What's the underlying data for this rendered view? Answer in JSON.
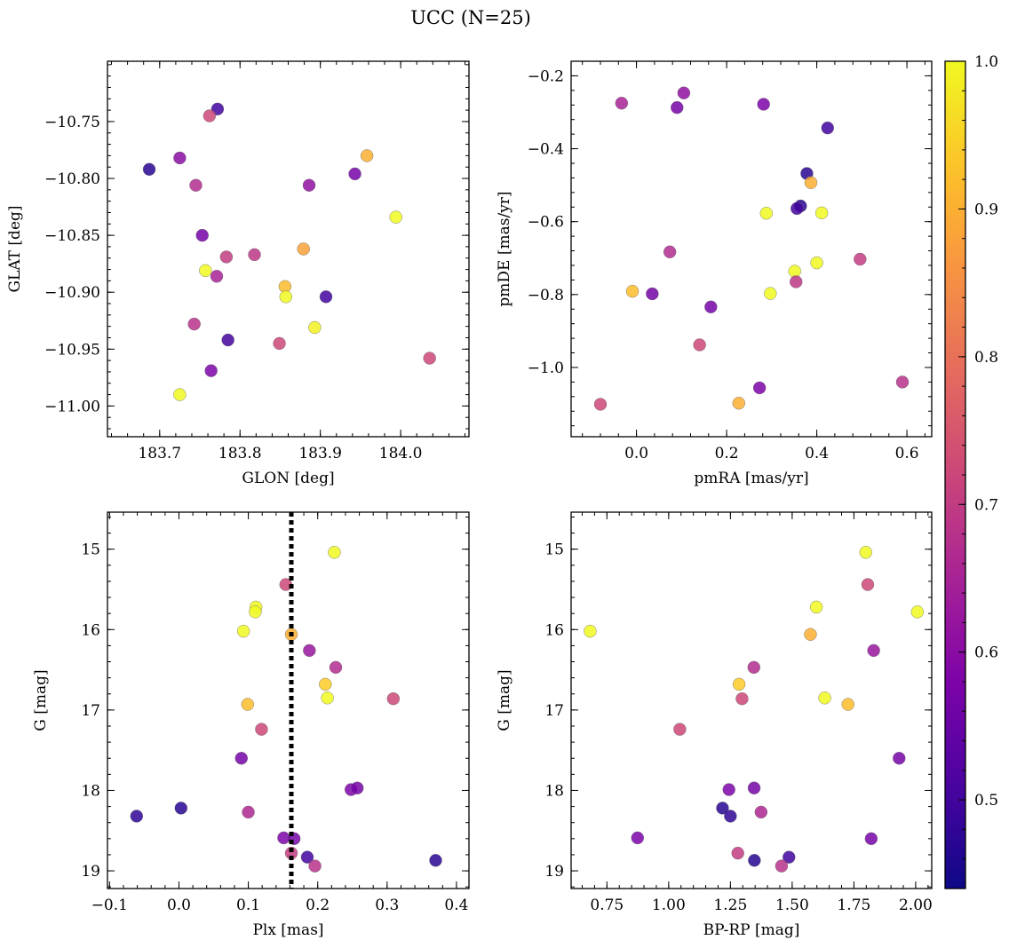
{
  "figure": {
    "title": "UCC (N=25)"
  },
  "colors": {
    "colormap": "plasma",
    "marker_edge": "#666666",
    "vline": "#000000"
  },
  "chart_data": [
    {
      "type": "scatter",
      "id": "sky",
      "xlabel": "GLON [deg]",
      "ylabel": "GLAT [deg]",
      "xlim": [
        183.635,
        184.085
      ],
      "ylim": [
        -11.027,
        -10.697
      ],
      "xticks": [
        183.7,
        183.8,
        183.9,
        184.0
      ],
      "xtick_labels": [
        "183.7",
        "183.8",
        "183.9",
        "184.0"
      ],
      "yticks": [
        -10.75,
        -10.8,
        -10.85,
        -10.9,
        -10.95,
        -11.0
      ],
      "ytick_labels": [
        "−10.75",
        "−10.80",
        "−10.85",
        "−10.90",
        "−10.95",
        "−11.00"
      ],
      "points": [
        {
          "x": 183.687,
          "y": -10.792,
          "c": 0.47
        },
        {
          "x": 183.772,
          "y": -10.739,
          "c": 0.5
        },
        {
          "x": 183.762,
          "y": -10.745,
          "c": 0.72
        },
        {
          "x": 183.725,
          "y": -10.782,
          "c": 0.6
        },
        {
          "x": 183.745,
          "y": -10.806,
          "c": 0.67
        },
        {
          "x": 183.753,
          "y": -10.85,
          "c": 0.57
        },
        {
          "x": 183.757,
          "y": -10.881,
          "c": 1.0
        },
        {
          "x": 183.771,
          "y": -10.886,
          "c": 0.65
        },
        {
          "x": 183.783,
          "y": -10.869,
          "c": 0.7
        },
        {
          "x": 183.818,
          "y": -10.867,
          "c": 0.69
        },
        {
          "x": 183.743,
          "y": -10.928,
          "c": 0.68
        },
        {
          "x": 183.785,
          "y": -10.942,
          "c": 0.5
        },
        {
          "x": 183.764,
          "y": -10.969,
          "c": 0.58
        },
        {
          "x": 183.725,
          "y": -10.99,
          "c": 1.0
        },
        {
          "x": 183.849,
          "y": -10.945,
          "c": 0.72
        },
        {
          "x": 183.856,
          "y": -10.895,
          "c": 0.92
        },
        {
          "x": 183.857,
          "y": -10.904,
          "c": 1.0
        },
        {
          "x": 183.879,
          "y": -10.862,
          "c": 0.88
        },
        {
          "x": 183.886,
          "y": -10.806,
          "c": 0.61
        },
        {
          "x": 183.893,
          "y": -10.931,
          "c": 0.99
        },
        {
          "x": 183.907,
          "y": -10.904,
          "c": 0.5
        },
        {
          "x": 183.943,
          "y": -10.796,
          "c": 0.57
        },
        {
          "x": 183.958,
          "y": -10.78,
          "c": 0.9
        },
        {
          "x": 183.994,
          "y": -10.834,
          "c": 1.0
        },
        {
          "x": 184.036,
          "y": -10.958,
          "c": 0.72
        }
      ]
    },
    {
      "type": "scatter",
      "id": "pm",
      "xlabel": "pmRA [mas/yr]",
      "ylabel": "pmDE [mas/yr]",
      "xlim": [
        -0.145,
        0.655
      ],
      "ylim": [
        -1.19,
        -0.16
      ],
      "xticks": [
        0.0,
        0.2,
        0.4,
        0.6
      ],
      "xtick_labels": [
        "0.0",
        "0.2",
        "0.4",
        "0.6"
      ],
      "yticks": [
        -0.2,
        -0.4,
        -0.6,
        -0.8,
        -1.0
      ],
      "ytick_labels": [
        "−0.2",
        "−0.4",
        "−0.6",
        "−0.8",
        "−1.0"
      ],
      "points": [
        {
          "x": -0.033,
          "y": -0.275,
          "c": 0.65
        },
        {
          "x": 0.105,
          "y": -0.247,
          "c": 0.61
        },
        {
          "x": 0.09,
          "y": -0.287,
          "c": 0.57
        },
        {
          "x": 0.282,
          "y": -0.278,
          "c": 0.58
        },
        {
          "x": 0.424,
          "y": -0.343,
          "c": 0.5
        },
        {
          "x": 0.378,
          "y": -0.468,
          "c": 0.47
        },
        {
          "x": 0.387,
          "y": -0.493,
          "c": 0.9
        },
        {
          "x": 0.364,
          "y": -0.557,
          "c": 0.47
        },
        {
          "x": 0.356,
          "y": -0.564,
          "c": 0.5
        },
        {
          "x": 0.288,
          "y": -0.577,
          "c": 1.0
        },
        {
          "x": 0.411,
          "y": -0.576,
          "c": 1.0
        },
        {
          "x": 0.074,
          "y": -0.683,
          "c": 0.67
        },
        {
          "x": 0.4,
          "y": -0.713,
          "c": 1.0
        },
        {
          "x": 0.496,
          "y": -0.703,
          "c": 0.7
        },
        {
          "x": 0.351,
          "y": -0.736,
          "c": 1.0
        },
        {
          "x": 0.354,
          "y": -0.765,
          "c": 0.69
        },
        {
          "x": -0.009,
          "y": -0.791,
          "c": 0.92
        },
        {
          "x": 0.035,
          "y": -0.798,
          "c": 0.57
        },
        {
          "x": 0.297,
          "y": -0.797,
          "c": 1.0
        },
        {
          "x": 0.165,
          "y": -0.834,
          "c": 0.57
        },
        {
          "x": 0.14,
          "y": -0.938,
          "c": 0.72
        },
        {
          "x": 0.273,
          "y": -1.056,
          "c": 0.58
        },
        {
          "x": 0.59,
          "y": -1.04,
          "c": 0.68
        },
        {
          "x": -0.08,
          "y": -1.101,
          "c": 0.72
        },
        {
          "x": 0.227,
          "y": -1.098,
          "c": 0.9
        }
      ]
    },
    {
      "type": "scatter",
      "id": "plx",
      "xlabel": "Plx [mas]",
      "ylabel": "G [mag]",
      "xlim": [
        -0.103,
        0.418
      ],
      "ylim": [
        19.22,
        14.54
      ],
      "xticks": [
        -0.1,
        0.0,
        0.1,
        0.2,
        0.3,
        0.4
      ],
      "xtick_labels": [
        "−0.1",
        "0.0",
        "0.1",
        "0.2",
        "0.3",
        "0.4"
      ],
      "yticks": [
        15,
        16,
        17,
        18,
        19
      ],
      "ytick_labels": [
        "15",
        "16",
        "17",
        "18",
        "19"
      ],
      "vline": 0.162,
      "points": [
        {
          "x": 0.224,
          "y": 15.04,
          "c": 1.0
        },
        {
          "x": 0.154,
          "y": 15.44,
          "c": 0.72
        },
        {
          "x": 0.111,
          "y": 15.72,
          "c": 1.0
        },
        {
          "x": 0.11,
          "y": 15.78,
          "c": 1.0
        },
        {
          "x": 0.093,
          "y": 16.02,
          "c": 1.0
        },
        {
          "x": 0.162,
          "y": 16.06,
          "c": 0.9
        },
        {
          "x": 0.188,
          "y": 16.26,
          "c": 0.62
        },
        {
          "x": 0.226,
          "y": 16.47,
          "c": 0.67
        },
        {
          "x": 0.211,
          "y": 16.68,
          "c": 0.94
        },
        {
          "x": 0.214,
          "y": 16.85,
          "c": 1.0
        },
        {
          "x": 0.309,
          "y": 16.86,
          "c": 0.72
        },
        {
          "x": 0.099,
          "y": 16.93,
          "c": 0.92
        },
        {
          "x": 0.119,
          "y": 17.24,
          "c": 0.72
        },
        {
          "x": 0.09,
          "y": 17.6,
          "c": 0.57
        },
        {
          "x": 0.248,
          "y": 17.99,
          "c": 0.58
        },
        {
          "x": 0.257,
          "y": 17.97,
          "c": 0.57
        },
        {
          "x": 0.003,
          "y": 18.22,
          "c": 0.47
        },
        {
          "x": -0.061,
          "y": 18.32,
          "c": 0.48
        },
        {
          "x": 0.1,
          "y": 18.27,
          "c": 0.66
        },
        {
          "x": 0.151,
          "y": 18.59,
          "c": 0.58
        },
        {
          "x": 0.166,
          "y": 18.6,
          "c": 0.57
        },
        {
          "x": 0.162,
          "y": 18.78,
          "c": 0.7
        },
        {
          "x": 0.185,
          "y": 18.83,
          "c": 0.5
        },
        {
          "x": 0.196,
          "y": 18.94,
          "c": 0.68
        },
        {
          "x": 0.37,
          "y": 18.87,
          "c": 0.47
        }
      ]
    },
    {
      "type": "scatter",
      "id": "cmd",
      "xlabel": "BP-RP [mag]",
      "ylabel": "G [mag]",
      "xlim": [
        0.605,
        2.065
      ],
      "ylim": [
        19.22,
        14.54
      ],
      "xticks": [
        0.75,
        1.0,
        1.25,
        1.5,
        1.75,
        2.0
      ],
      "xtick_labels": [
        "0.75",
        "1.00",
        "1.25",
        "1.50",
        "1.75",
        "2.00"
      ],
      "yticks": [
        15,
        16,
        17,
        18,
        19
      ],
      "ytick_labels": [
        "15",
        "16",
        "17",
        "18",
        "19"
      ],
      "points": [
        {
          "x": 1.798,
          "y": 15.04,
          "c": 1.0
        },
        {
          "x": 1.806,
          "y": 15.44,
          "c": 0.72
        },
        {
          "x": 1.598,
          "y": 15.72,
          "c": 1.0
        },
        {
          "x": 2.007,
          "y": 15.78,
          "c": 1.0
        },
        {
          "x": 0.682,
          "y": 16.02,
          "c": 1.0
        },
        {
          "x": 1.574,
          "y": 16.06,
          "c": 0.9
        },
        {
          "x": 1.83,
          "y": 16.26,
          "c": 0.62
        },
        {
          "x": 1.345,
          "y": 16.47,
          "c": 0.67
        },
        {
          "x": 1.285,
          "y": 16.68,
          "c": 0.94
        },
        {
          "x": 1.632,
          "y": 16.85,
          "c": 1.0
        },
        {
          "x": 1.297,
          "y": 16.86,
          "c": 0.72
        },
        {
          "x": 1.726,
          "y": 16.93,
          "c": 0.92
        },
        {
          "x": 1.045,
          "y": 17.24,
          "c": 0.72
        },
        {
          "x": 1.933,
          "y": 17.6,
          "c": 0.57
        },
        {
          "x": 1.244,
          "y": 17.99,
          "c": 0.58
        },
        {
          "x": 1.346,
          "y": 17.97,
          "c": 0.57
        },
        {
          "x": 1.218,
          "y": 18.22,
          "c": 0.47
        },
        {
          "x": 1.25,
          "y": 18.32,
          "c": 0.48
        },
        {
          "x": 1.374,
          "y": 18.27,
          "c": 0.66
        },
        {
          "x": 0.874,
          "y": 18.59,
          "c": 0.58
        },
        {
          "x": 1.82,
          "y": 18.6,
          "c": 0.57
        },
        {
          "x": 1.28,
          "y": 18.78,
          "c": 0.7
        },
        {
          "x": 1.487,
          "y": 18.83,
          "c": 0.5
        },
        {
          "x": 1.457,
          "y": 18.94,
          "c": 0.68
        },
        {
          "x": 1.347,
          "y": 18.87,
          "c": 0.47
        }
      ]
    }
  ],
  "colorbar": {
    "range": [
      0.44,
      1.0
    ],
    "ticks": [
      0.5,
      0.6,
      0.7,
      0.8,
      0.9,
      1.0
    ],
    "tick_labels": [
      "0.5",
      "0.6",
      "0.7",
      "0.8",
      "0.9",
      "1.0"
    ]
  }
}
